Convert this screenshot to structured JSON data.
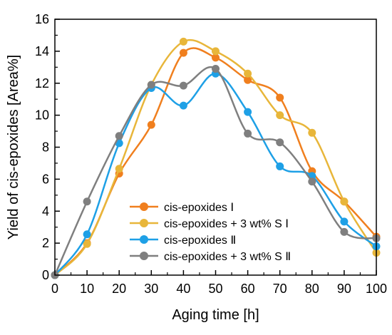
{
  "chart_data": {
    "type": "line",
    "xlabel": "Aging time [h]",
    "ylabel": "Yield of cis-epoxides [Area%]",
    "xlim": [
      0,
      100
    ],
    "ylim": [
      0,
      16
    ],
    "x_ticks": [
      0,
      10,
      20,
      30,
      40,
      50,
      60,
      70,
      80,
      90,
      100
    ],
    "y_ticks": [
      0,
      2,
      4,
      6,
      8,
      10,
      12,
      14,
      16
    ],
    "grid": false,
    "legend_position": "bottom-center",
    "x": [
      0,
      10,
      20,
      30,
      40,
      50,
      60,
      70,
      80,
      90,
      100
    ],
    "series": [
      {
        "name": "cis-epoxides Ⅰ",
        "color": "#F07F1E",
        "values": [
          0,
          2.0,
          6.35,
          9.4,
          13.9,
          13.6,
          12.2,
          11.1,
          6.5,
          4.6,
          2.4
        ]
      },
      {
        "name": "cis-epoxides + 3 wt% S Ⅰ",
        "color": "#E8B63A",
        "values": [
          0,
          1.95,
          6.65,
          11.9,
          14.6,
          14.0,
          12.6,
          10.0,
          8.9,
          4.6,
          1.4
        ]
      },
      {
        "name": "cis-epoxides Ⅱ",
        "color": "#1EA0E6",
        "values": [
          0,
          2.55,
          8.25,
          11.7,
          10.6,
          12.6,
          10.2,
          6.8,
          6.2,
          3.35,
          1.8
        ]
      },
      {
        "name": "cis-epoxides + 3 wt% S Ⅱ",
        "color": "#7F7F7F",
        "values": [
          0,
          4.6,
          8.7,
          11.9,
          11.85,
          12.9,
          8.85,
          8.3,
          5.85,
          2.7,
          2.3
        ]
      }
    ]
  }
}
